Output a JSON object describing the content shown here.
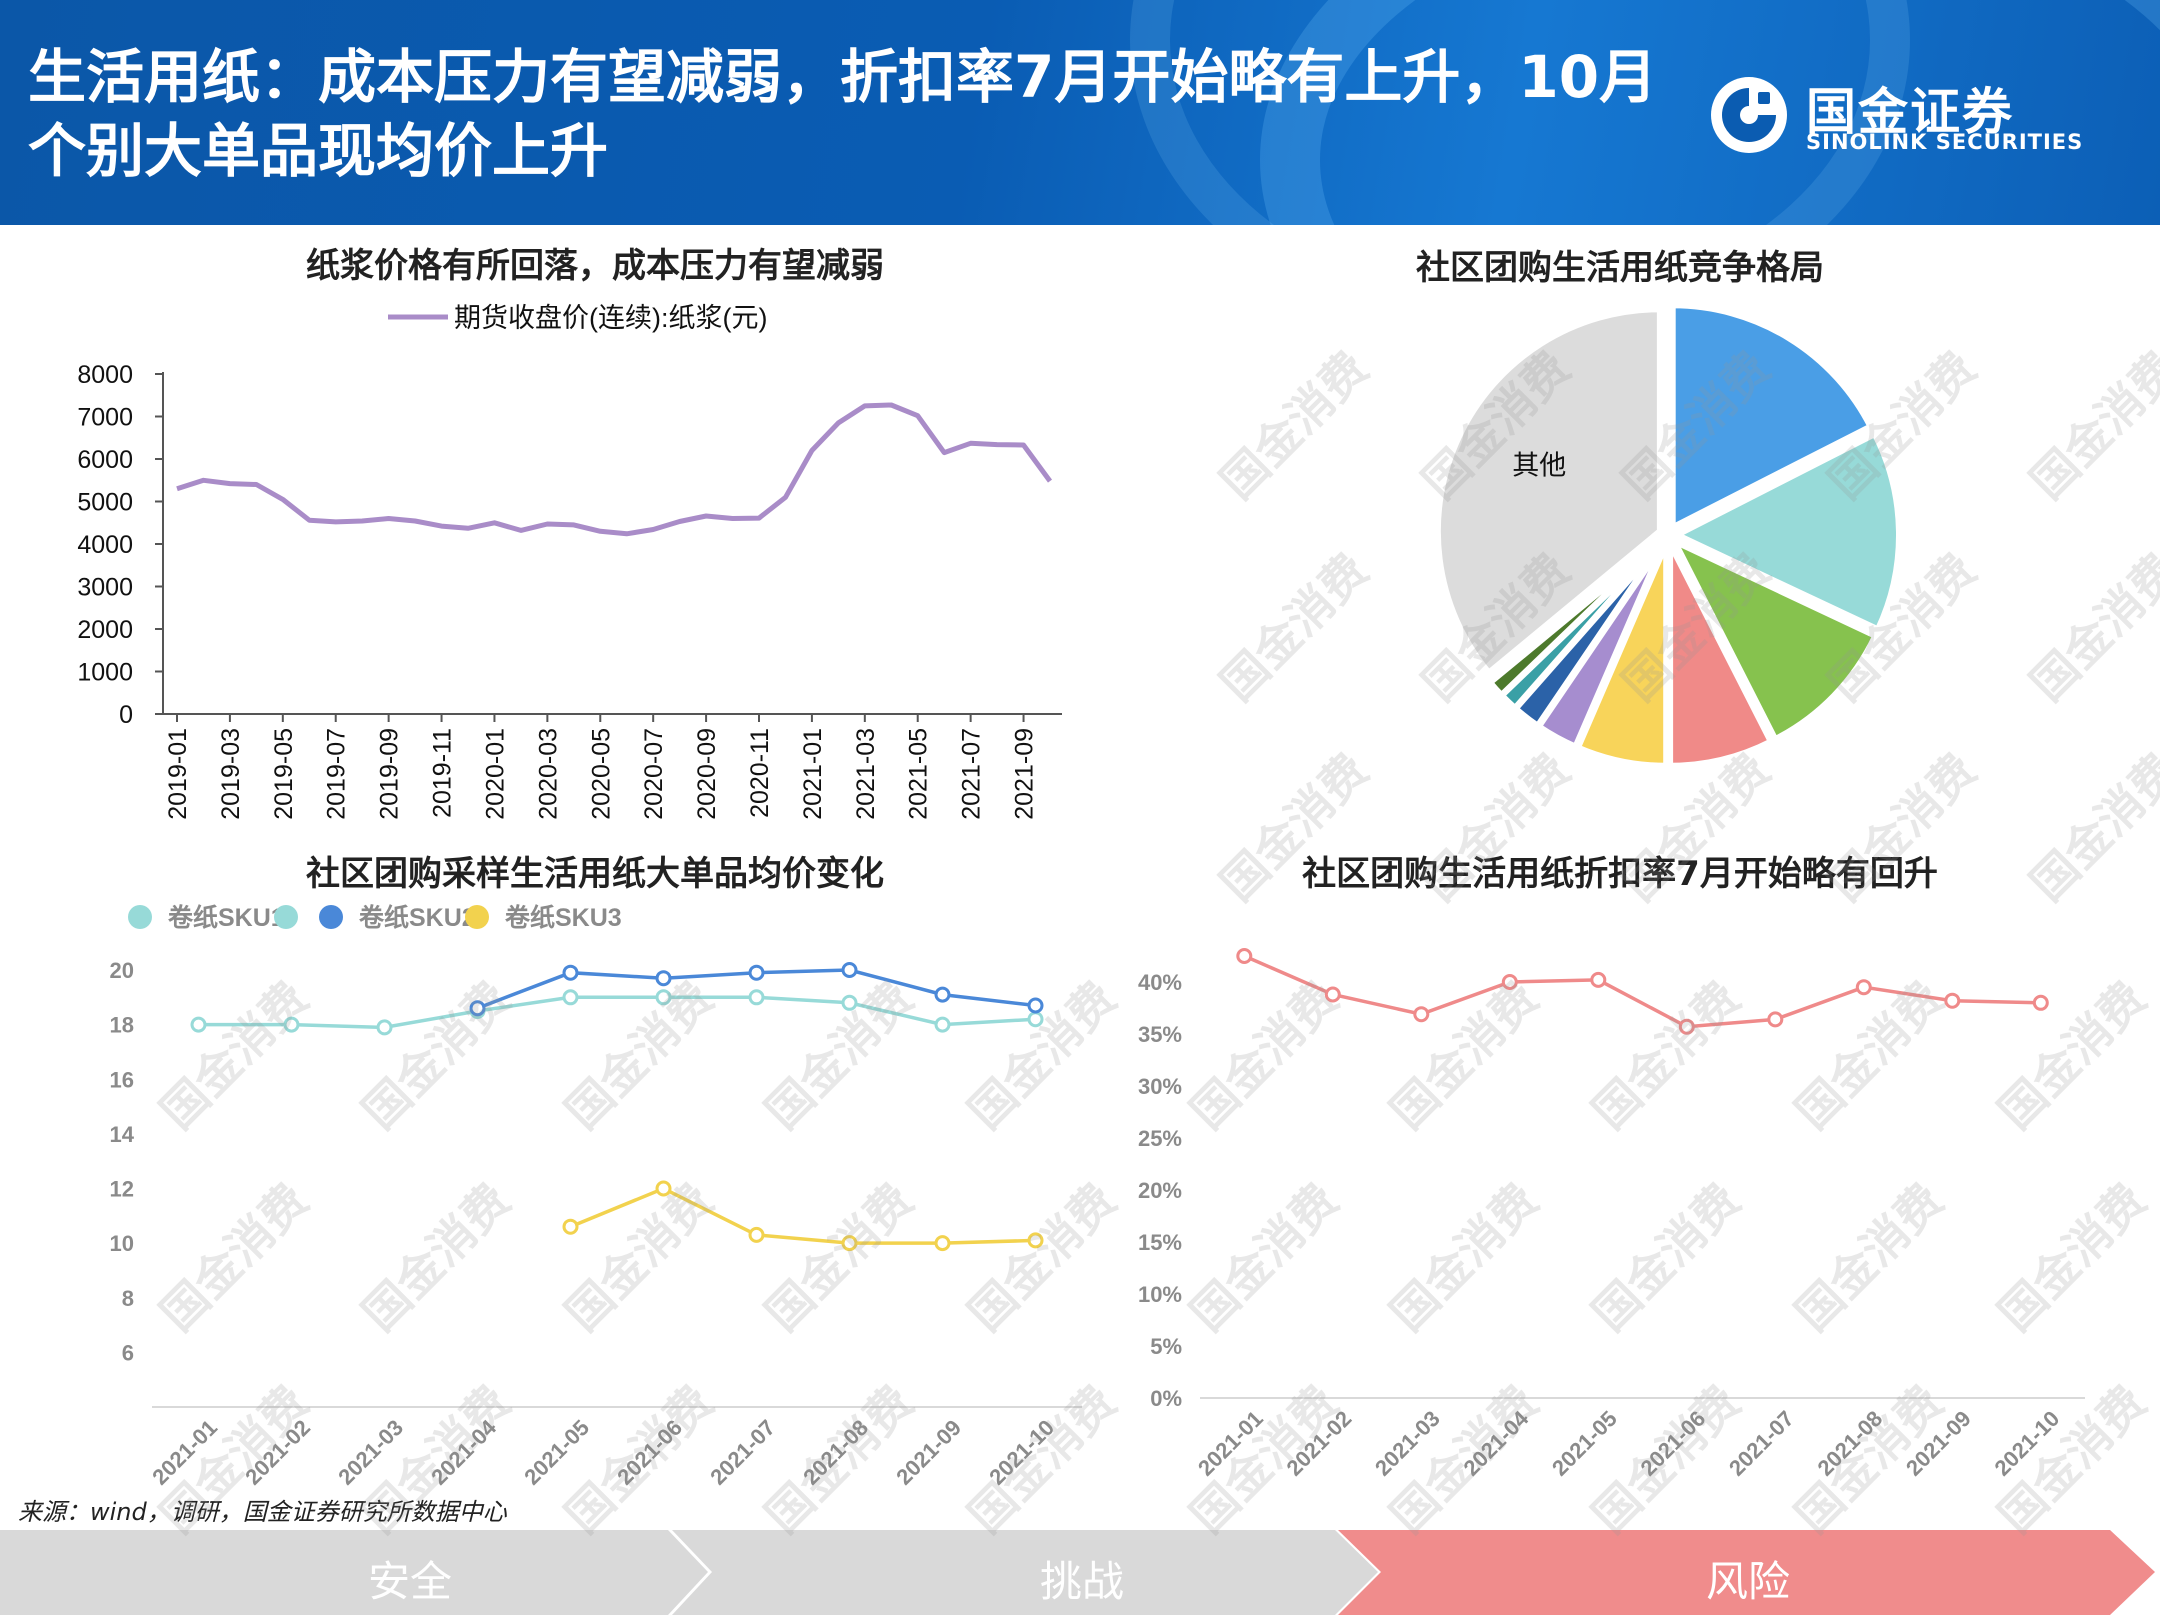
{
  "title": "生活用纸：成本压力有望减弱，折扣率7月开始略有上升，10月个别大单品现均价上升",
  "title_line1": "生活用纸：成本压力有望减弱，折扣率7月开始略有上升，10月",
  "title_line2": "个别大单品现均价上升",
  "logo": {
    "cn": "国金证券",
    "en": "SINOLINK SECURITIES"
  },
  "watermark": "国金消费",
  "source": "来源：wind，调研，国金证券研究所数据中心",
  "footer": {
    "steps": [
      "安全",
      "挑战",
      "风险"
    ],
    "colors": [
      "#d9d9d9",
      "#d9d9d9",
      "#f08c8c"
    ]
  },
  "chart_data": [
    {
      "id": "pulp",
      "type": "line",
      "title": "纸浆价格有所回落，成本压力有望减弱",
      "legend": "期货收盘价(连续):纸浆(元)",
      "color": "#a98cc8",
      "ylim": [
        0,
        8000
      ],
      "yticks": [
        0,
        1000,
        2000,
        3000,
        4000,
        5000,
        6000,
        7000,
        8000
      ],
      "xtick_labels": [
        "2019-01",
        "2019-03",
        "2019-05",
        "2019-07",
        "2019-09",
        "2019-11",
        "2020-01",
        "2020-03",
        "2020-05",
        "2020-07",
        "2020-09",
        "2020-11",
        "2021-01",
        "2021-03",
        "2021-05",
        "2021-07",
        "2021-09"
      ],
      "values": [
        5300,
        5500,
        5420,
        5400,
        5050,
        4560,
        4520,
        4540,
        4600,
        4540,
        4420,
        4370,
        4500,
        4320,
        4470,
        4450,
        4300,
        4240,
        4340,
        4530,
        4660,
        4600,
        4610,
        5100,
        6200,
        6850,
        7250,
        7270,
        7020,
        6150,
        6370,
        6340,
        6330,
        5480
      ]
    },
    {
      "id": "share",
      "type": "pie",
      "title": "社区团购生活用纸竞争格局",
      "slices": [
        {
          "label": "",
          "value": 17.5,
          "color": "#4a9ee6",
          "explode": 1
        },
        {
          "label": "",
          "value": 14.5,
          "color": "#97dad8",
          "explode": 1
        },
        {
          "label": "",
          "value": 10.5,
          "color": "#86c24e",
          "explode": 1
        },
        {
          "label": "",
          "value": 7.5,
          "color": "#f08a88",
          "explode": 1
        },
        {
          "label": "",
          "value": 6.5,
          "color": "#f8d45a",
          "explode": 1
        },
        {
          "label": "",
          "value": 3.0,
          "color": "#a68dcf",
          "explode": 1
        },
        {
          "label": "",
          "value": 2.0,
          "color": "#2b62a8",
          "explode": 1
        },
        {
          "label": "",
          "value": 1.3,
          "color": "#3aa0a6",
          "explode": 1
        },
        {
          "label": "",
          "value": 1.2,
          "color": "#4d7a2c",
          "explode": 1
        },
        {
          "label": "其他",
          "value": 36.0,
          "color": "#dcdcdc",
          "explode": 1
        }
      ]
    },
    {
      "id": "sku",
      "type": "line",
      "title": "社区团购采样生活用纸大单品均价变化",
      "legend": [
        {
          "name": "卷纸SKU1",
          "color": "#97dad8"
        },
        {
          "name": "",
          "color": "#97dad8"
        },
        {
          "name": "卷纸SKU2",
          "color": "#4a88d8"
        },
        {
          "name": "卷纸SKU3",
          "color": "#f2d24e"
        }
      ],
      "categories": [
        "2021-01",
        "2021-02",
        "2021-03",
        "2021-04",
        "2021-05",
        "2021-06",
        "2021-07",
        "2021-08",
        "2021-09",
        "2021-10"
      ],
      "ylim": [
        4,
        20
      ],
      "yticks": [
        6,
        8,
        10,
        12,
        14,
        16,
        18,
        20
      ],
      "series": [
        {
          "name": "卷纸SKU1",
          "color": "#97dad8",
          "values": [
            18,
            18,
            17.9,
            18.5,
            19,
            19,
            19,
            18.8,
            18,
            18.2
          ]
        },
        {
          "name": "卷纸SKU2",
          "color": "#4a88d8",
          "values": [
            null,
            null,
            null,
            18.6,
            19.9,
            19.7,
            19.9,
            20,
            19.1,
            18.7
          ]
        },
        {
          "name": "卷纸SKU3",
          "color": "#f2d24e",
          "values": [
            null,
            null,
            null,
            null,
            10.6,
            12,
            10.3,
            10,
            10,
            10.1
          ]
        }
      ]
    },
    {
      "id": "discount",
      "type": "line",
      "title": "社区团购生活用纸折扣率7月开始略有回升",
      "categories": [
        "2021-01",
        "2021-02",
        "2021-03",
        "2021-04",
        "2021-05",
        "2021-06",
        "2021-07",
        "2021-08",
        "2021-09",
        "2021-10"
      ],
      "ylim": [
        0,
        40
      ],
      "yticks": [
        0,
        5,
        10,
        15,
        20,
        25,
        30,
        35,
        40
      ],
      "ytick_labels": [
        "0%",
        "5%",
        "10%",
        "15%",
        "20%",
        "25%",
        "30%",
        "35%",
        "40%"
      ],
      "series": [
        {
          "name": "",
          "color": "#ef8a8a",
          "values": [
            42.5,
            38.8,
            36.9,
            40,
            40.2,
            35.7,
            36.4,
            39.5,
            38.2,
            38
          ]
        }
      ]
    }
  ]
}
